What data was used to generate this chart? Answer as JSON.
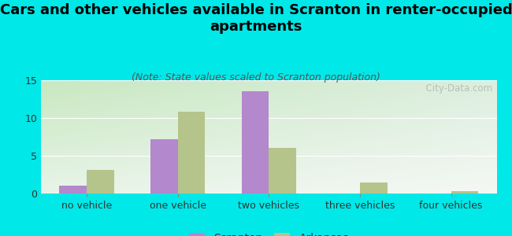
{
  "title": "Cars and other vehicles available in Scranton in renter-occupied\napartments",
  "subtitle": "(Note: State values scaled to Scranton population)",
  "categories": [
    "no vehicle",
    "one vehicle",
    "two vehicles",
    "three vehicles",
    "four vehicles"
  ],
  "scranton_values": [
    1.0,
    7.2,
    13.5,
    0.0,
    0.0
  ],
  "arkansas_values": [
    3.1,
    10.8,
    6.0,
    1.5,
    0.3
  ],
  "scranton_color": "#b388cc",
  "arkansas_color": "#b5c48a",
  "background_color": "#00e8e8",
  "plot_bg_topleft": "#d4edd0",
  "plot_bg_topright": "#e8f0e8",
  "plot_bg_bottomleft": "#eef5f0",
  "plot_bg_bottomright": "#f8faf8",
  "ylim": [
    0,
    15
  ],
  "yticks": [
    0,
    5,
    10,
    15
  ],
  "bar_width": 0.3,
  "title_fontsize": 13,
  "subtitle_fontsize": 9,
  "tick_fontsize": 9,
  "legend_fontsize": 10,
  "watermark": "  City-Data.com"
}
